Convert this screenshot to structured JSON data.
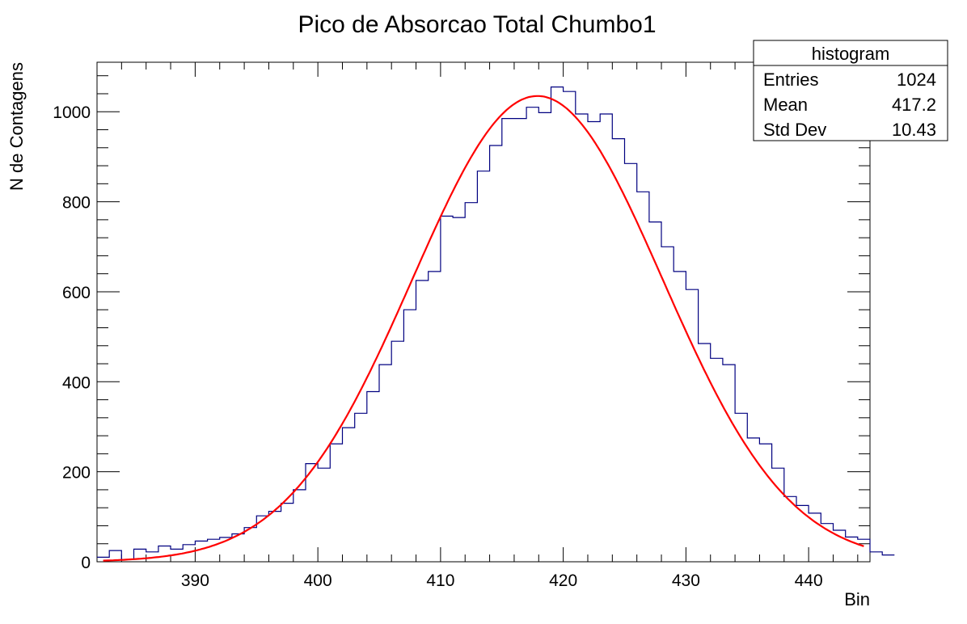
{
  "chart_data": {
    "type": "histogram",
    "title": "Pico de Absorcao Total Chumbo1",
    "xlabel": "Bin",
    "ylabel": "N de Contagens",
    "xlim": [
      382,
      445
    ],
    "ylim": [
      0,
      1110
    ],
    "x_ticks": [
      390,
      400,
      410,
      420,
      430,
      440
    ],
    "y_ticks": [
      0,
      200,
      400,
      600,
      800,
      1000
    ],
    "grid": false,
    "histogram": {
      "color": "#000080",
      "bin_width": 1,
      "bin_start": 382,
      "values": [
        10,
        25,
        5,
        28,
        22,
        35,
        28,
        38,
        46,
        50,
        54,
        62,
        76,
        102,
        112,
        130,
        160,
        218,
        208,
        262,
        298,
        330,
        378,
        438,
        490,
        560,
        625,
        645,
        768,
        765,
        798,
        868,
        925,
        985,
        985,
        1010,
        998,
        1055,
        1045,
        995,
        978,
        995,
        940,
        885,
        822,
        755,
        700,
        645,
        605,
        485,
        452,
        438,
        330,
        275,
        262,
        208,
        145,
        125,
        108,
        85,
        70,
        55,
        50,
        22,
        15
      ]
    },
    "fit": {
      "type": "gaussian",
      "color": "#ff0000",
      "constant": 1035,
      "mean": 417.9,
      "sigma": 10.2,
      "x_range": [
        382.5,
        444.5
      ]
    },
    "stats_box": {
      "title": "histogram",
      "rows": [
        {
          "label": "Entries",
          "value": "1024"
        },
        {
          "label": "Mean",
          "value": "417.2"
        },
        {
          "label": "Std Dev",
          "value": "10.43"
        }
      ]
    }
  }
}
